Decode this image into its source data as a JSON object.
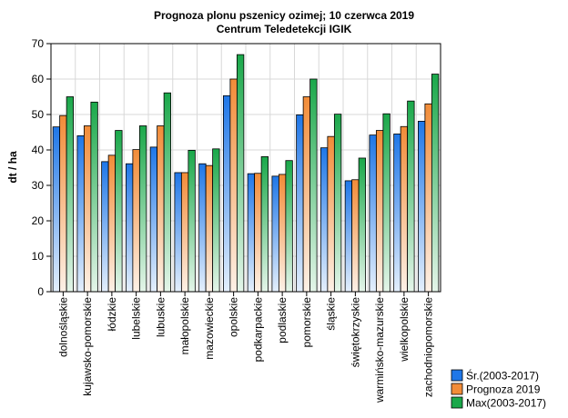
{
  "chart_data": {
    "type": "bar",
    "title": "Prognoza plonu pszenicy ozimej; 10 czerwca 2019",
    "subtitle": "Centrum Teledetekcji IGIK",
    "ylabel": "dt / ha",
    "xlabel": "",
    "ylim": [
      0,
      70
    ],
    "yticks": [
      0,
      10,
      20,
      30,
      40,
      50,
      60,
      70
    ],
    "grid": true,
    "legend_position": "bottom-right",
    "categories": [
      "dolnośląskie",
      "kujawsko-pomorskie",
      "łódzkie",
      "lubelskie",
      "lubuskie",
      "małopolskie",
      "mazowieckie",
      "opolskie",
      "podkarpackie",
      "podlaskie",
      "pomorskie",
      "śląskie",
      "świętokrzyskie",
      "warmińsko-mazurskie",
      "wielkopolskie",
      "zachodniopomorskie"
    ],
    "series": [
      {
        "name": "Śr.(2003-2017)",
        "color": "#1f77e8",
        "values": [
          46.5,
          44.0,
          36.7,
          36.1,
          40.8,
          33.6,
          36.1,
          55.3,
          33.3,
          32.6,
          49.9,
          40.6,
          31.3,
          44.2,
          44.5,
          48.1
        ]
      },
      {
        "name": "Prognoza 2019",
        "color": "#f28c38",
        "values": [
          49.7,
          46.8,
          38.5,
          40.1,
          46.8,
          33.6,
          35.6,
          60.0,
          33.4,
          33.1,
          55.0,
          43.8,
          31.6,
          45.5,
          46.6,
          53.0
        ]
      },
      {
        "name": "Max(2003-2017)",
        "color": "#1aa84a",
        "values": [
          55.0,
          53.5,
          45.5,
          46.8,
          56.1,
          39.9,
          40.3,
          66.9,
          38.1,
          37.0,
          60.0,
          50.1,
          37.7,
          50.2,
          53.8,
          61.4
        ]
      }
    ]
  }
}
